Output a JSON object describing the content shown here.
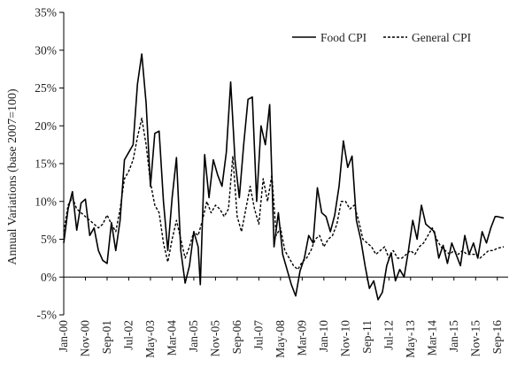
{
  "chart_data": {
    "type": "line",
    "title": "",
    "xlabel": "",
    "ylabel": "Annual Variations (base 2007=100)",
    "ylim": [
      -5,
      35
    ],
    "y_ticks": [
      "-5%",
      "0%",
      "5%",
      "10%",
      "15%",
      "20%",
      "25%",
      "30%",
      "35%"
    ],
    "y_tick_values": [
      -5,
      0,
      5,
      10,
      15,
      20,
      25,
      30,
      35
    ],
    "x_ticks": [
      "Jan-00",
      "Nov-00",
      "Sep-01",
      "Jul-02",
      "May-03",
      "Mar-04",
      "Jan-05",
      "Nov-05",
      "Sep-06",
      "Jul-07",
      "May-08",
      "Mar-09",
      "Jan-10",
      "Nov-10",
      "Sep-11",
      "Jul-12",
      "May-13",
      "Mar-14",
      "Jan-15",
      "Nov-15",
      "Sep-16"
    ],
    "x_range": [
      "Jan-00",
      "Feb-17"
    ],
    "grid": false,
    "legend_position": "top-right",
    "series": [
      {
        "name": "Food CPI",
        "style": "solid",
        "color": "#000000",
        "points": [
          [
            "Jan-00",
            4.5
          ],
          [
            "Mar-00",
            9.0
          ],
          [
            "May-00",
            11.3
          ],
          [
            "Jul-00",
            6.2
          ],
          [
            "Sep-00",
            9.8
          ],
          [
            "Nov-00",
            10.3
          ],
          [
            "Jan-01",
            5.5
          ],
          [
            "Mar-01",
            6.5
          ],
          [
            "May-01",
            3.5
          ],
          [
            "Jul-01",
            2.2
          ],
          [
            "Sep-01",
            1.8
          ],
          [
            "Nov-01",
            7.2
          ],
          [
            "Jan-02",
            3.5
          ],
          [
            "Mar-02",
            7.5
          ],
          [
            "May-02",
            15.5
          ],
          [
            "Jul-02",
            16.5
          ],
          [
            "Sep-02",
            17.5
          ],
          [
            "Nov-02",
            25.5
          ],
          [
            "Jan-03",
            29.5
          ],
          [
            "Mar-03",
            23.0
          ],
          [
            "May-03",
            12.0
          ],
          [
            "Jul-03",
            19.0
          ],
          [
            "Sep-03",
            19.3
          ],
          [
            "Nov-03",
            10.0
          ],
          [
            "Jan-04",
            3.5
          ],
          [
            "Mar-04",
            10.5
          ],
          [
            "May-04",
            15.8
          ],
          [
            "Jul-04",
            3.5
          ],
          [
            "Sep-04",
            -0.8
          ],
          [
            "Nov-04",
            1.5
          ],
          [
            "Jan-05",
            6.0
          ],
          [
            "Mar-05",
            4.0
          ],
          [
            "Apr-05",
            -1.0
          ],
          [
            "Jun-05",
            16.2
          ],
          [
            "Aug-05",
            10.5
          ],
          [
            "Oct-05",
            15.5
          ],
          [
            "Dec-05",
            13.5
          ],
          [
            "Feb-06",
            12.0
          ],
          [
            "Apr-06",
            16.5
          ],
          [
            "Jun-06",
            25.8
          ],
          [
            "Aug-06",
            15.5
          ],
          [
            "Oct-06",
            10.5
          ],
          [
            "Dec-06",
            17.5
          ],
          [
            "Feb-07",
            23.5
          ],
          [
            "Apr-07",
            23.8
          ],
          [
            "Jun-07",
            10.0
          ],
          [
            "Aug-07",
            20.0
          ],
          [
            "Oct-07",
            17.5
          ],
          [
            "Dec-07",
            22.8
          ],
          [
            "Feb-08",
            4.0
          ],
          [
            "Apr-08",
            8.5
          ],
          [
            "Jun-08",
            3.0
          ],
          [
            "Aug-08",
            1.0
          ],
          [
            "Oct-08",
            -1.0
          ],
          [
            "Dec-08",
            -2.5
          ],
          [
            "Feb-09",
            0.8
          ],
          [
            "Apr-09",
            2.5
          ],
          [
            "Jun-09",
            5.5
          ],
          [
            "Aug-09",
            4.5
          ],
          [
            "Oct-09",
            11.8
          ],
          [
            "Dec-09",
            8.5
          ],
          [
            "Feb-10",
            8.0
          ],
          [
            "Apr-10",
            6.0
          ],
          [
            "Jun-10",
            8.2
          ],
          [
            "Aug-10",
            12.0
          ],
          [
            "Oct-10",
            18.0
          ],
          [
            "Dec-10",
            14.5
          ],
          [
            "Feb-11",
            16.0
          ],
          [
            "Apr-11",
            7.5
          ],
          [
            "Jun-11",
            5.0
          ],
          [
            "Aug-11",
            1.5
          ],
          [
            "Oct-11",
            -1.5
          ],
          [
            "Dec-11",
            -0.5
          ],
          [
            "Feb-12",
            -3.0
          ],
          [
            "Apr-12",
            -2.0
          ],
          [
            "Jun-12",
            1.5
          ],
          [
            "Aug-12",
            3.2
          ],
          [
            "Oct-12",
            -0.5
          ],
          [
            "Dec-12",
            1.0
          ],
          [
            "Feb-13",
            0.0
          ],
          [
            "Apr-13",
            3.5
          ],
          [
            "Jun-13",
            7.5
          ],
          [
            "Aug-13",
            5.0
          ],
          [
            "Oct-13",
            9.5
          ],
          [
            "Dec-13",
            7.0
          ],
          [
            "Feb-14",
            6.5
          ],
          [
            "Apr-14",
            6.0
          ],
          [
            "Jun-14",
            2.5
          ],
          [
            "Aug-14",
            4.2
          ],
          [
            "Oct-14",
            1.8
          ],
          [
            "Dec-14",
            4.5
          ],
          [
            "Feb-15",
            3.0
          ],
          [
            "Apr-15",
            1.5
          ],
          [
            "Jun-15",
            5.5
          ],
          [
            "Aug-15",
            3.0
          ],
          [
            "Oct-15",
            4.5
          ],
          [
            "Dec-15",
            2.5
          ],
          [
            "Feb-16",
            6.0
          ],
          [
            "Apr-16",
            4.5
          ],
          [
            "Jun-16",
            6.5
          ],
          [
            "Aug-16",
            8.0
          ],
          [
            "Sep-16",
            8.0
          ],
          [
            "Dec-16",
            7.8
          ]
        ]
      },
      {
        "name": "General CPI",
        "style": "dashed",
        "color": "#000000",
        "points": [
          [
            "Jan-00",
            6.0
          ],
          [
            "Mar-00",
            9.5
          ],
          [
            "May-00",
            10.5
          ],
          [
            "Jul-00",
            9.0
          ],
          [
            "Sep-00",
            8.5
          ],
          [
            "Nov-00",
            8.0
          ],
          [
            "Jan-01",
            7.5
          ],
          [
            "Mar-01",
            7.0
          ],
          [
            "May-01",
            6.5
          ],
          [
            "Jul-01",
            7.0
          ],
          [
            "Sep-01",
            8.2
          ],
          [
            "Nov-01",
            7.0
          ],
          [
            "Jan-02",
            6.0
          ],
          [
            "Mar-02",
            9.0
          ],
          [
            "May-02",
            13.0
          ],
          [
            "Jul-02",
            14.0
          ],
          [
            "Sep-02",
            15.5
          ],
          [
            "Nov-02",
            18.5
          ],
          [
            "Jan-03",
            21.0
          ],
          [
            "Mar-03",
            17.5
          ],
          [
            "May-03",
            12.5
          ],
          [
            "Jul-03",
            9.5
          ],
          [
            "Sep-03",
            8.5
          ],
          [
            "Nov-03",
            4.5
          ],
          [
            "Jan-04",
            2.0
          ],
          [
            "Mar-04",
            5.0
          ],
          [
            "May-04",
            7.5
          ],
          [
            "Jul-04",
            5.0
          ],
          [
            "Sep-04",
            2.5
          ],
          [
            "Nov-04",
            4.0
          ],
          [
            "Jan-05",
            6.0
          ],
          [
            "Mar-05",
            5.5
          ],
          [
            "May-05",
            7.5
          ],
          [
            "Jul-05",
            10.0
          ],
          [
            "Sep-05",
            8.5
          ],
          [
            "Nov-05",
            9.5
          ],
          [
            "Jan-06",
            9.0
          ],
          [
            "Mar-06",
            8.0
          ],
          [
            "May-06",
            9.0
          ],
          [
            "Jul-06",
            16.0
          ],
          [
            "Sep-06",
            8.0
          ],
          [
            "Nov-06",
            6.0
          ],
          [
            "Jan-07",
            9.0
          ],
          [
            "Mar-07",
            12.0
          ],
          [
            "May-07",
            9.0
          ],
          [
            "Jul-07",
            7.0
          ],
          [
            "Sep-07",
            13.0
          ],
          [
            "Nov-07",
            10.0
          ],
          [
            "Jan-08",
            13.5
          ],
          [
            "Mar-08",
            5.5
          ],
          [
            "May-08",
            6.5
          ],
          [
            "Jul-08",
            3.5
          ],
          [
            "Sep-08",
            2.5
          ],
          [
            "Nov-08",
            1.5
          ],
          [
            "Jan-09",
            1.0
          ],
          [
            "Mar-09",
            2.0
          ],
          [
            "May-09",
            2.5
          ],
          [
            "Jul-09",
            3.5
          ],
          [
            "Sep-09",
            5.0
          ],
          [
            "Nov-09",
            5.5
          ],
          [
            "Jan-10",
            4.0
          ],
          [
            "Mar-10",
            5.0
          ],
          [
            "May-10",
            5.5
          ],
          [
            "Jul-10",
            7.0
          ],
          [
            "Sep-10",
            10.0
          ],
          [
            "Nov-10",
            10.0
          ],
          [
            "Jan-11",
            9.0
          ],
          [
            "Mar-11",
            9.5
          ],
          [
            "May-11",
            7.5
          ],
          [
            "Jul-11",
            5.0
          ],
          [
            "Sep-11",
            4.5
          ],
          [
            "Nov-11",
            4.0
          ],
          [
            "Jan-12",
            3.0
          ],
          [
            "Mar-12",
            3.5
          ],
          [
            "May-12",
            4.0
          ],
          [
            "Jul-12",
            2.5
          ],
          [
            "Sep-12",
            3.5
          ],
          [
            "Nov-12",
            2.5
          ],
          [
            "Jan-13",
            2.5
          ],
          [
            "Mar-13",
            3.0
          ],
          [
            "May-13",
            3.5
          ],
          [
            "Jul-13",
            3.0
          ],
          [
            "Sep-13",
            4.0
          ],
          [
            "Nov-13",
            4.5
          ],
          [
            "Jan-14",
            5.5
          ],
          [
            "Mar-14",
            6.5
          ],
          [
            "May-14",
            5.0
          ],
          [
            "Jul-14",
            4.0
          ],
          [
            "Sep-14",
            3.5
          ],
          [
            "Nov-14",
            3.0
          ],
          [
            "Jan-15",
            3.5
          ],
          [
            "Mar-15",
            3.0
          ],
          [
            "May-15",
            3.5
          ],
          [
            "Jul-15",
            3.0
          ],
          [
            "Sep-15",
            3.0
          ],
          [
            "Nov-15",
            3.0
          ],
          [
            "Jan-16",
            2.5
          ],
          [
            "Mar-16",
            3.0
          ],
          [
            "May-16",
            3.5
          ],
          [
            "Jul-16",
            3.5
          ],
          [
            "Sep-16",
            3.8
          ],
          [
            "Dec-16",
            4.0
          ]
        ]
      }
    ]
  }
}
